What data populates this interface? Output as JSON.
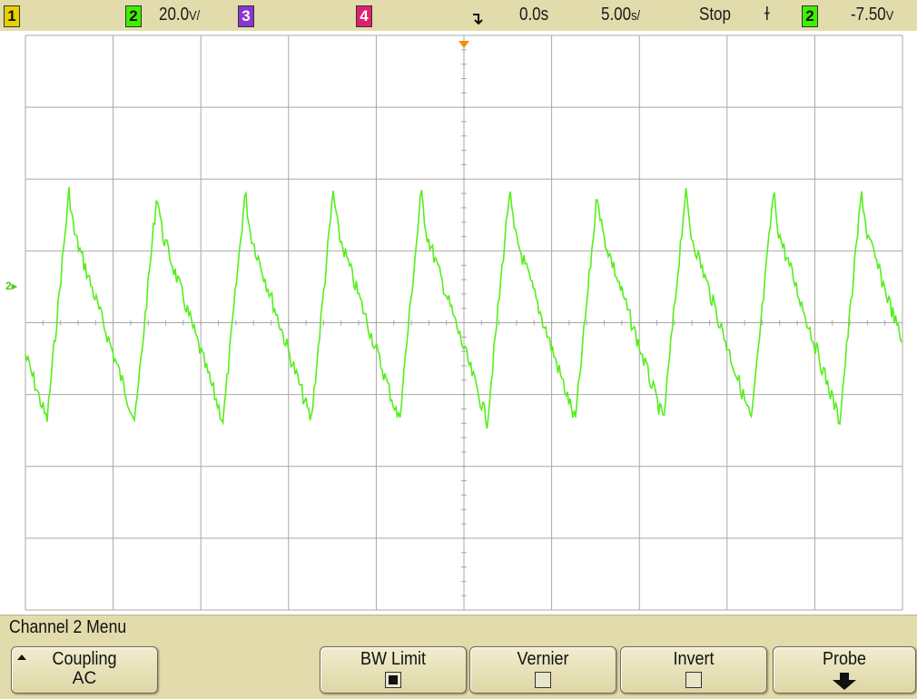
{
  "status": {
    "ch1_label": "1",
    "ch2_label": "2",
    "ch2_scale": "20.0",
    "ch2_scale_unit": "V/",
    "ch3_label": "3",
    "ch4_label": "4",
    "time_delay": "0.0s",
    "time_scale": "5.00",
    "time_scale_unit": "s/",
    "run_state": "Stop",
    "trigger_slope_symbol": "ɫ",
    "trigger_source": "2",
    "trigger_level": "-7.50",
    "trigger_level_unit": "V"
  },
  "screen": {
    "ch2_ground_marker": "2"
  },
  "colors": {
    "ch1": "#e8d000",
    "ch2": "#3ef000",
    "ch3": "#8a35d4",
    "ch4": "#e0206e",
    "trigger": "#f0900a",
    "grid": "#a8a8a8",
    "trace": "#55ee1c"
  },
  "menu": {
    "title": "Channel 2  Menu",
    "softkeys": [
      {
        "label": "Coupling",
        "value": "AC"
      },
      {
        "label": "BW Limit",
        "checked": true
      },
      {
        "label": "Vernier",
        "checked": false
      },
      {
        "label": "Invert",
        "checked": false
      },
      {
        "label": "Probe",
        "icon": "down-arrow-icon"
      }
    ]
  }
}
